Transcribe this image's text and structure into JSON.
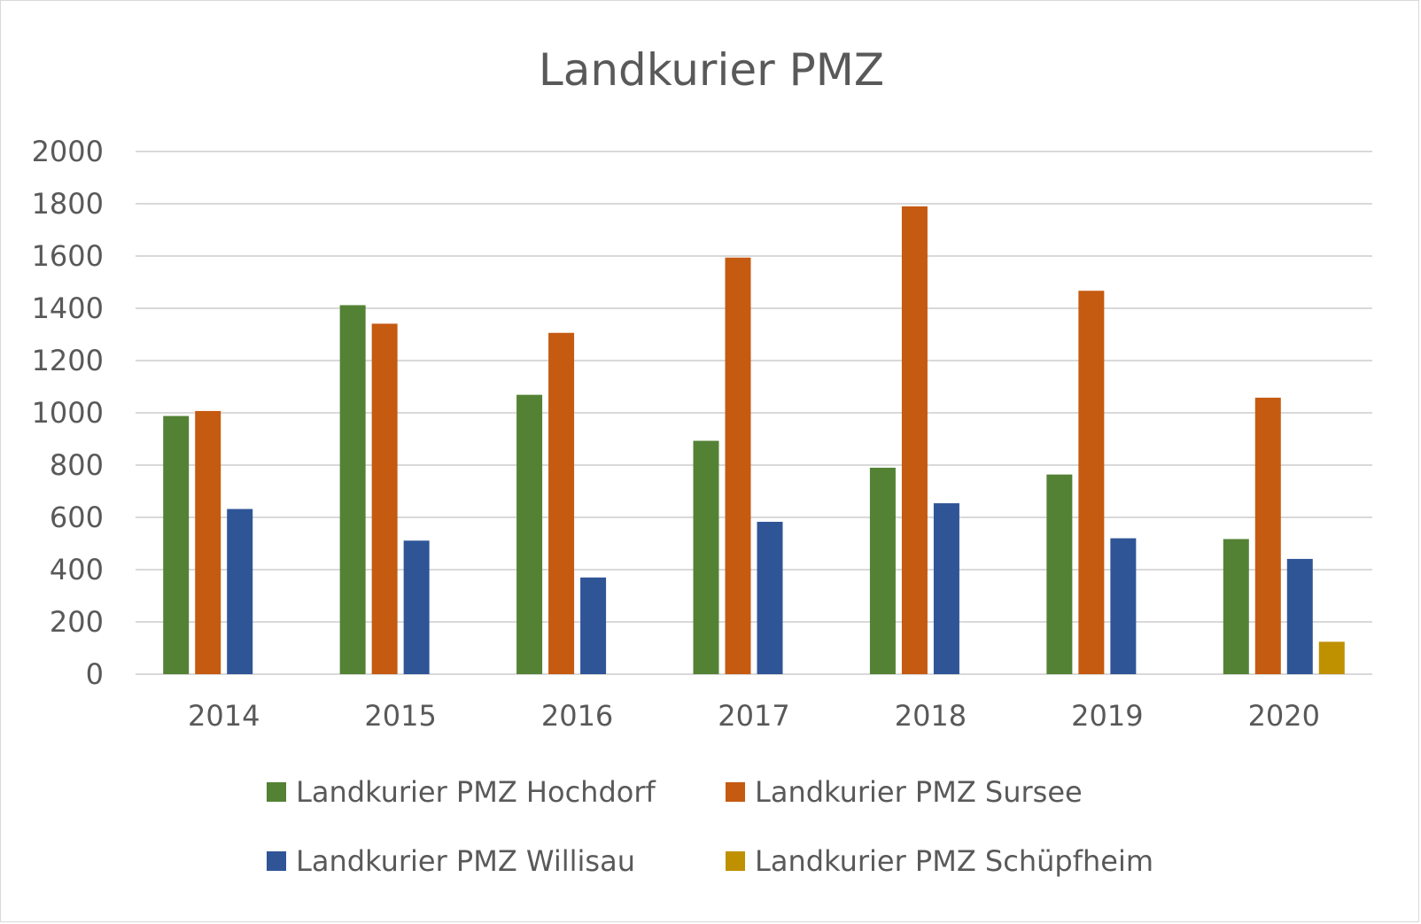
{
  "chart_data": {
    "type": "bar",
    "title": "Landkurier PMZ",
    "xlabel": "",
    "ylabel": "",
    "ylim": [
      0,
      2000
    ],
    "yticks": [
      0,
      200,
      400,
      600,
      800,
      1000,
      1200,
      1400,
      1600,
      1800,
      2000
    ],
    "grid": true,
    "legend_position": "bottom",
    "categories": [
      "2014",
      "2015",
      "2016",
      "2017",
      "2018",
      "2019",
      "2020"
    ],
    "series": [
      {
        "name": "Landkurier PMZ Hochdorf",
        "color": "#548235",
        "values": [
          988,
          1412,
          1069,
          893,
          790,
          764,
          517
        ]
      },
      {
        "name": "Landkurier PMZ Sursee",
        "color": "#c55a11",
        "values": [
          1007,
          1341,
          1306,
          1594,
          1790,
          1467,
          1058
        ]
      },
      {
        "name": "Landkurier PMZ Willisau",
        "color": "#2f5597",
        "values": [
          632,
          511,
          370,
          583,
          654,
          520,
          441
        ]
      },
      {
        "name": "Landkurier PMZ Schüpfheim",
        "color": "#bf9000",
        "values": [
          null,
          null,
          null,
          null,
          null,
          null,
          124
        ]
      }
    ]
  }
}
